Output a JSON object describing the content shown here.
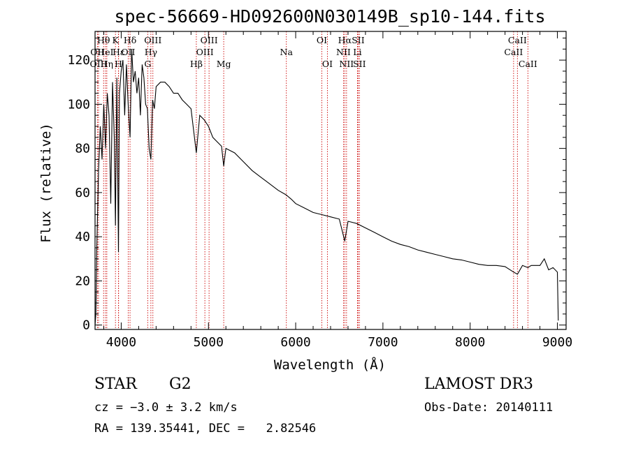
{
  "chart_data": {
    "type": "line",
    "title": "spec-56669-HD092600N030149B_sp10-144.fits",
    "xlabel": "Wavelength (Å)",
    "ylabel": "Flux (relative)",
    "xlim": [
      3700,
      9100
    ],
    "ylim": [
      -2,
      133
    ],
    "x_ticks": [
      4000,
      5000,
      6000,
      7000,
      8000,
      9000
    ],
    "y_ticks": [
      0,
      20,
      40,
      60,
      80,
      100,
      120
    ],
    "x_tick_labels": [
      "4000",
      "5000",
      "6000",
      "7000",
      "8000",
      "9000"
    ],
    "y_tick_labels": [
      "0",
      "20",
      "40",
      "60",
      "80",
      "100",
      "120"
    ],
    "series": [
      {
        "name": "flux",
        "color": "#000000",
        "x": [
          3700,
          3710,
          3720,
          3740,
          3760,
          3780,
          3800,
          3820,
          3840,
          3860,
          3880,
          3900,
          3920,
          3934,
          3950,
          3968,
          3980,
          4000,
          4020,
          4040,
          4060,
          4080,
          4101,
          4120,
          4140,
          4160,
          4180,
          4200,
          4220,
          4240,
          4260,
          4280,
          4300,
          4320,
          4340,
          4360,
          4380,
          4400,
          4450,
          4500,
          4550,
          4600,
          4650,
          4700,
          4750,
          4800,
          4861,
          4900,
          4950,
          5000,
          5050,
          5100,
          5150,
          5175,
          5200,
          5300,
          5400,
          5500,
          5600,
          5700,
          5800,
          5890,
          5950,
          6000,
          6100,
          6200,
          6300,
          6400,
          6500,
          6563,
          6600,
          6700,
          6800,
          6900,
          7000,
          7100,
          7200,
          7300,
          7400,
          7500,
          7600,
          7700,
          7800,
          7900,
          8000,
          8100,
          8200,
          8300,
          8400,
          8498,
          8542,
          8600,
          8662,
          8700,
          8800,
          8850,
          8900,
          8950,
          9000,
          9010
        ],
        "y": [
          0,
          5,
          35,
          70,
          90,
          75,
          100,
          80,
          105,
          95,
          55,
          110,
          85,
          45,
          112,
          33,
          105,
          115,
          120,
          95,
          118,
          100,
          85,
          125,
          110,
          115,
          105,
          112,
          95,
          118,
          112,
          100,
          98,
          80,
          75,
          102,
          98,
          108,
          110,
          110,
          108,
          105,
          105,
          102,
          100,
          98,
          78,
          95,
          93,
          90,
          85,
          83,
          81,
          72,
          80,
          78,
          74,
          70,
          67,
          64,
          61,
          59,
          57,
          55,
          53,
          51,
          50,
          49,
          48,
          38,
          47,
          46,
          44,
          42,
          40,
          38,
          36.5,
          35.5,
          34,
          33,
          32,
          31,
          30,
          29.5,
          28.5,
          27.5,
          27,
          27,
          26.5,
          24,
          23,
          27,
          26,
          27,
          27,
          30,
          25,
          26,
          24,
          2
        ]
      }
    ],
    "spectral_lines": [
      {
        "label": "Hθ",
        "wavelength": 3798,
        "row": 1
      },
      {
        "label": "OII",
        "wavelength": 3727,
        "row": 2
      },
      {
        "label": "HeI",
        "wavelength": 3820,
        "row": 2
      },
      {
        "label": "OIII",
        "wavelength": 3740,
        "row": 3
      },
      {
        "label": "Hη",
        "wavelength": 3835,
        "row": 3
      },
      {
        "label": "K",
        "wavelength": 3934,
        "row": 1
      },
      {
        "label": "H",
        "wavelength": 3968,
        "row": 3
      },
      {
        "label": "Hε",
        "wavelength": 3970,
        "row": 2
      },
      {
        "label": "Hδ",
        "wavelength": 4101,
        "row": 1
      },
      {
        "label": "OII",
        "wavelength": 4080,
        "row": 2
      },
      {
        "label": "OIII",
        "wavelength": 4363,
        "row": 1
      },
      {
        "label": "Hγ",
        "wavelength": 4340,
        "row": 2
      },
      {
        "label": "G",
        "wavelength": 4304,
        "row": 3
      },
      {
        "label": "OIII",
        "wavelength": 5007,
        "row": 1
      },
      {
        "label": "OIII",
        "wavelength": 4959,
        "row": 2
      },
      {
        "label": "Hβ",
        "wavelength": 4861,
        "row": 3
      },
      {
        "label": "Mg",
        "wavelength": 5175,
        "row": 3
      },
      {
        "label": "Na",
        "wavelength": 5893,
        "row": 2
      },
      {
        "label": "OI",
        "wavelength": 6300,
        "row": 1
      },
      {
        "label": "OI",
        "wavelength": 6364,
        "row": 3
      },
      {
        "label": "Hα",
        "wavelength": 6563,
        "row": 1
      },
      {
        "label": "NII",
        "wavelength": 6548,
        "row": 2
      },
      {
        "label": "NII",
        "wavelength": 6583,
        "row": 3
      },
      {
        "label": "SII",
        "wavelength": 6716,
        "row": 1
      },
      {
        "label": "Li",
        "wavelength": 6708,
        "row": 2
      },
      {
        "label": "SII",
        "wavelength": 6731,
        "row": 3
      },
      {
        "label": "CaII",
        "wavelength": 8542,
        "row": 1
      },
      {
        "label": "CaII",
        "wavelength": 8498,
        "row": 2
      },
      {
        "label": "CaII",
        "wavelength": 8662,
        "row": 3
      }
    ],
    "line_marker_color": "#cc0000",
    "grid": false,
    "legend": "none"
  },
  "footer": {
    "class_label": "STAR",
    "subclass": "G2",
    "survey": "LAMOST DR3",
    "redshift": "cz = −3.0 ± 3.2 km/s",
    "obs_date": "Obs-Date: 20140111",
    "coords": "RA = 139.35441, DEC =   2.82546"
  }
}
